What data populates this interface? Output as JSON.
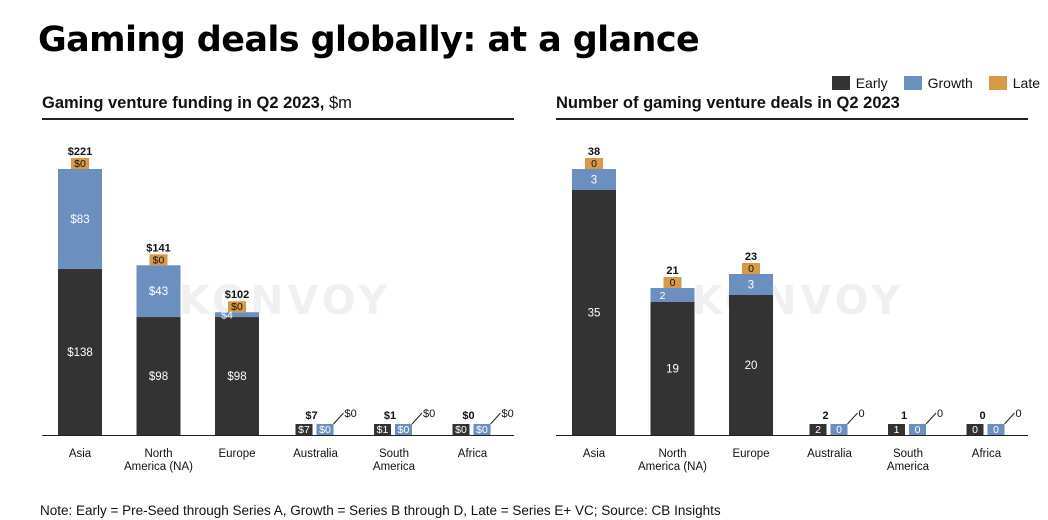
{
  "title": "Gaming deals globally: at a glance",
  "legend": [
    {
      "label": "Early",
      "color": "#333333"
    },
    {
      "label": "Growth",
      "color": "#6b8fbf"
    },
    {
      "label": "Late",
      "color": "#d89a48"
    }
  ],
  "watermark": "KONVOY",
  "left_panel": {
    "title": "Gaming venture funding in Q2 2023,",
    "unit": " $m"
  },
  "right_panel": {
    "title": "Number of gaming venture deals in Q2 2023"
  },
  "footnote": "Note: Early = Pre-Seed through Series A, Growth = Series B through D, Late = Series E+ VC; Source: CB Insights",
  "chart_data": [
    {
      "type": "bar",
      "stacked": true,
      "title": "Gaming venture funding in Q2 2023, $m",
      "categories": [
        [
          "Asia"
        ],
        [
          "North",
          "America (NA)"
        ],
        [
          "Europe"
        ],
        [
          "Australia"
        ],
        [
          "South",
          "America"
        ],
        [
          "Africa"
        ]
      ],
      "series": [
        {
          "name": "Early",
          "values": [
            138,
            98,
            98,
            7,
            1,
            0
          ]
        },
        {
          "name": "Growth",
          "values": [
            83,
            43,
            4,
            0,
            0,
            0
          ]
        },
        {
          "name": "Late",
          "values": [
            0,
            0,
            0,
            0,
            0,
            0
          ]
        }
      ],
      "segment_labels": [
        [
          "$138",
          "$83",
          "$0"
        ],
        [
          "$98",
          "$43",
          "$0"
        ],
        [
          "$98",
          "$4",
          "$0"
        ],
        [
          "$7",
          "$0",
          "$0"
        ],
        [
          "$1",
          "$0",
          "$0"
        ],
        [
          "$0",
          "$0",
          "$0"
        ]
      ],
      "totals": [
        "$221",
        "$141",
        "$102",
        "$7",
        "$1",
        "$0"
      ],
      "ylim": [
        0,
        221
      ]
    },
    {
      "type": "bar",
      "stacked": true,
      "title": "Number of gaming venture deals in Q2 2023",
      "categories": [
        [
          "Asia"
        ],
        [
          "North",
          "America (NA)"
        ],
        [
          "Europe"
        ],
        [
          "Australia"
        ],
        [
          "South",
          "America"
        ],
        [
          "Africa"
        ]
      ],
      "series": [
        {
          "name": "Early",
          "values": [
            35,
            19,
            20,
            2,
            1,
            0
          ]
        },
        {
          "name": "Growth",
          "values": [
            3,
            2,
            3,
            0,
            0,
            0
          ]
        },
        {
          "name": "Late",
          "values": [
            0,
            0,
            0,
            0,
            0,
            0
          ]
        }
      ],
      "segment_labels": [
        [
          "35",
          "3",
          "0"
        ],
        [
          "19",
          "2",
          "0"
        ],
        [
          "20",
          "3",
          "0"
        ],
        [
          "2",
          "0",
          "0"
        ],
        [
          "1",
          "0",
          "0"
        ],
        [
          "0",
          "0",
          "0"
        ]
      ],
      "totals": [
        "38",
        "21",
        "23",
        "2",
        "1",
        "0"
      ],
      "ylim": [
        0,
        38
      ]
    }
  ]
}
